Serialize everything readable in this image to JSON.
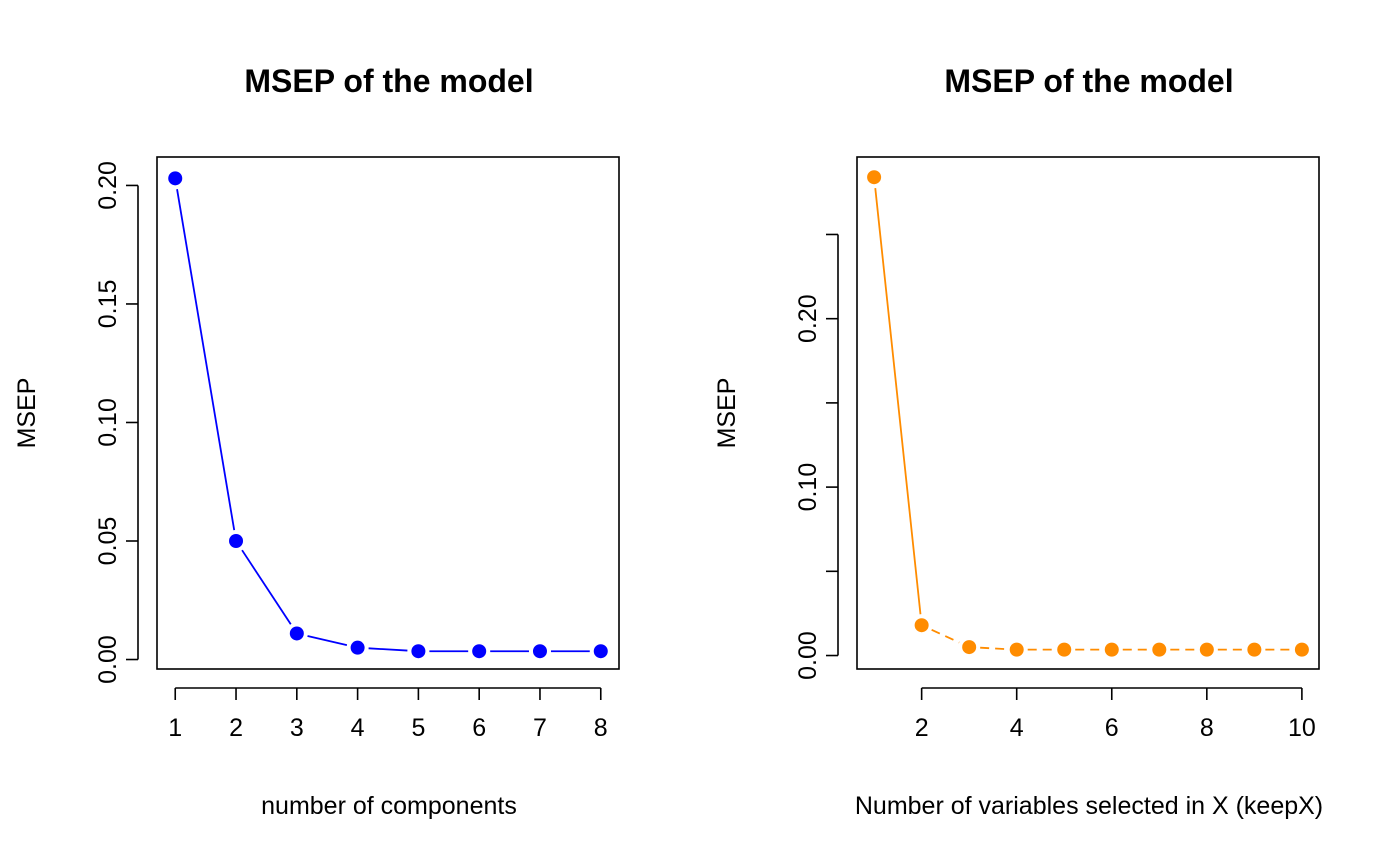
{
  "chart_data": [
    {
      "type": "line",
      "title": "MSEP of the model",
      "xlabel": "number of components",
      "ylabel": "MSEP",
      "x": [
        1,
        2,
        3,
        4,
        5,
        6,
        7,
        8
      ],
      "series": [
        {
          "values": [
            0.203,
            0.05,
            0.011,
            0.005,
            0.0035,
            0.0035,
            0.0035,
            0.0035
          ],
          "color": "#0000ff"
        }
      ],
      "xlim": [
        0.7,
        8.3
      ],
      "ylim": [
        -0.004,
        0.212
      ],
      "xticks": [
        "1",
        "2",
        "3",
        "4",
        "5",
        "6",
        "7",
        "8"
      ],
      "yticks": [
        "0.00",
        "0.05",
        "0.10",
        "0.15",
        "0.20"
      ],
      "grid": false,
      "legend": "none",
      "line_style": "solid, with gaps around points"
    },
    {
      "type": "line",
      "title": "MSEP of the model",
      "xlabel": "Number of variables selected in X (keepX)",
      "ylabel": "MSEP",
      "x": [
        1,
        2,
        3,
        4,
        5,
        6,
        7,
        8,
        9,
        10
      ],
      "series": [
        {
          "values": [
            0.284,
            0.018,
            0.005,
            0.0035,
            0.0035,
            0.0035,
            0.0035,
            0.0035,
            0.0035,
            0.0035
          ],
          "color": "#ff8c00"
        }
      ],
      "xlim": [
        0.64,
        10.36
      ],
      "ylim": [
        -0.008,
        0.296
      ],
      "xticks": [
        "2",
        "4",
        "6",
        "8",
        "10"
      ],
      "yticks": [
        "0.00",
        "0.10",
        "0.20"
      ],
      "minor_yticks": [
        0.05,
        0.15,
        0.25
      ],
      "grid": false,
      "legend": "none",
      "line_style": "solid then dashed, with gaps around points"
    }
  ]
}
